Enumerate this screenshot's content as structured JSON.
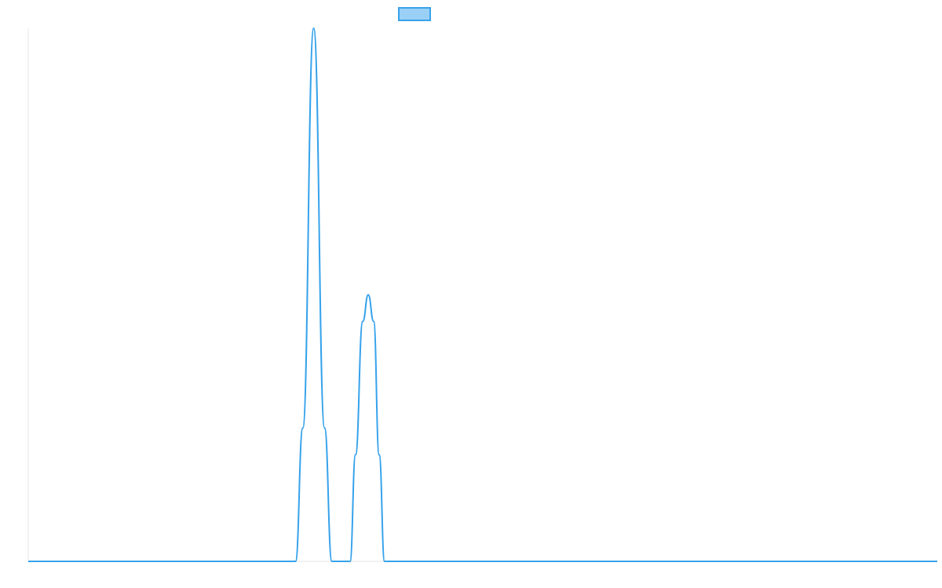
{
  "chart_data": {
    "type": "line",
    "title": "",
    "xlabel": "",
    "ylabel": "",
    "grid": false,
    "legend": {
      "placement": "top-center",
      "entries": [
        {
          "name": "",
          "color": "#36A2EB",
          "fill": "#9AD0F5"
        }
      ]
    },
    "xlim": [
      0,
      100
    ],
    "ylim": [
      0,
      100
    ],
    "series": [
      {
        "name": "",
        "color": "#36A2EB",
        "x": [
          0,
          29.4,
          30.2,
          31.4,
          32.6,
          33.4,
          34.2,
          35.4,
          36.0,
          36.8,
          37.4,
          38.0,
          38.6,
          39.2,
          40.2,
          100
        ],
        "y": [
          0,
          0,
          25,
          100,
          25,
          0,
          0,
          0,
          20,
          45,
          50,
          45,
          20,
          0,
          0,
          0
        ]
      }
    ]
  }
}
